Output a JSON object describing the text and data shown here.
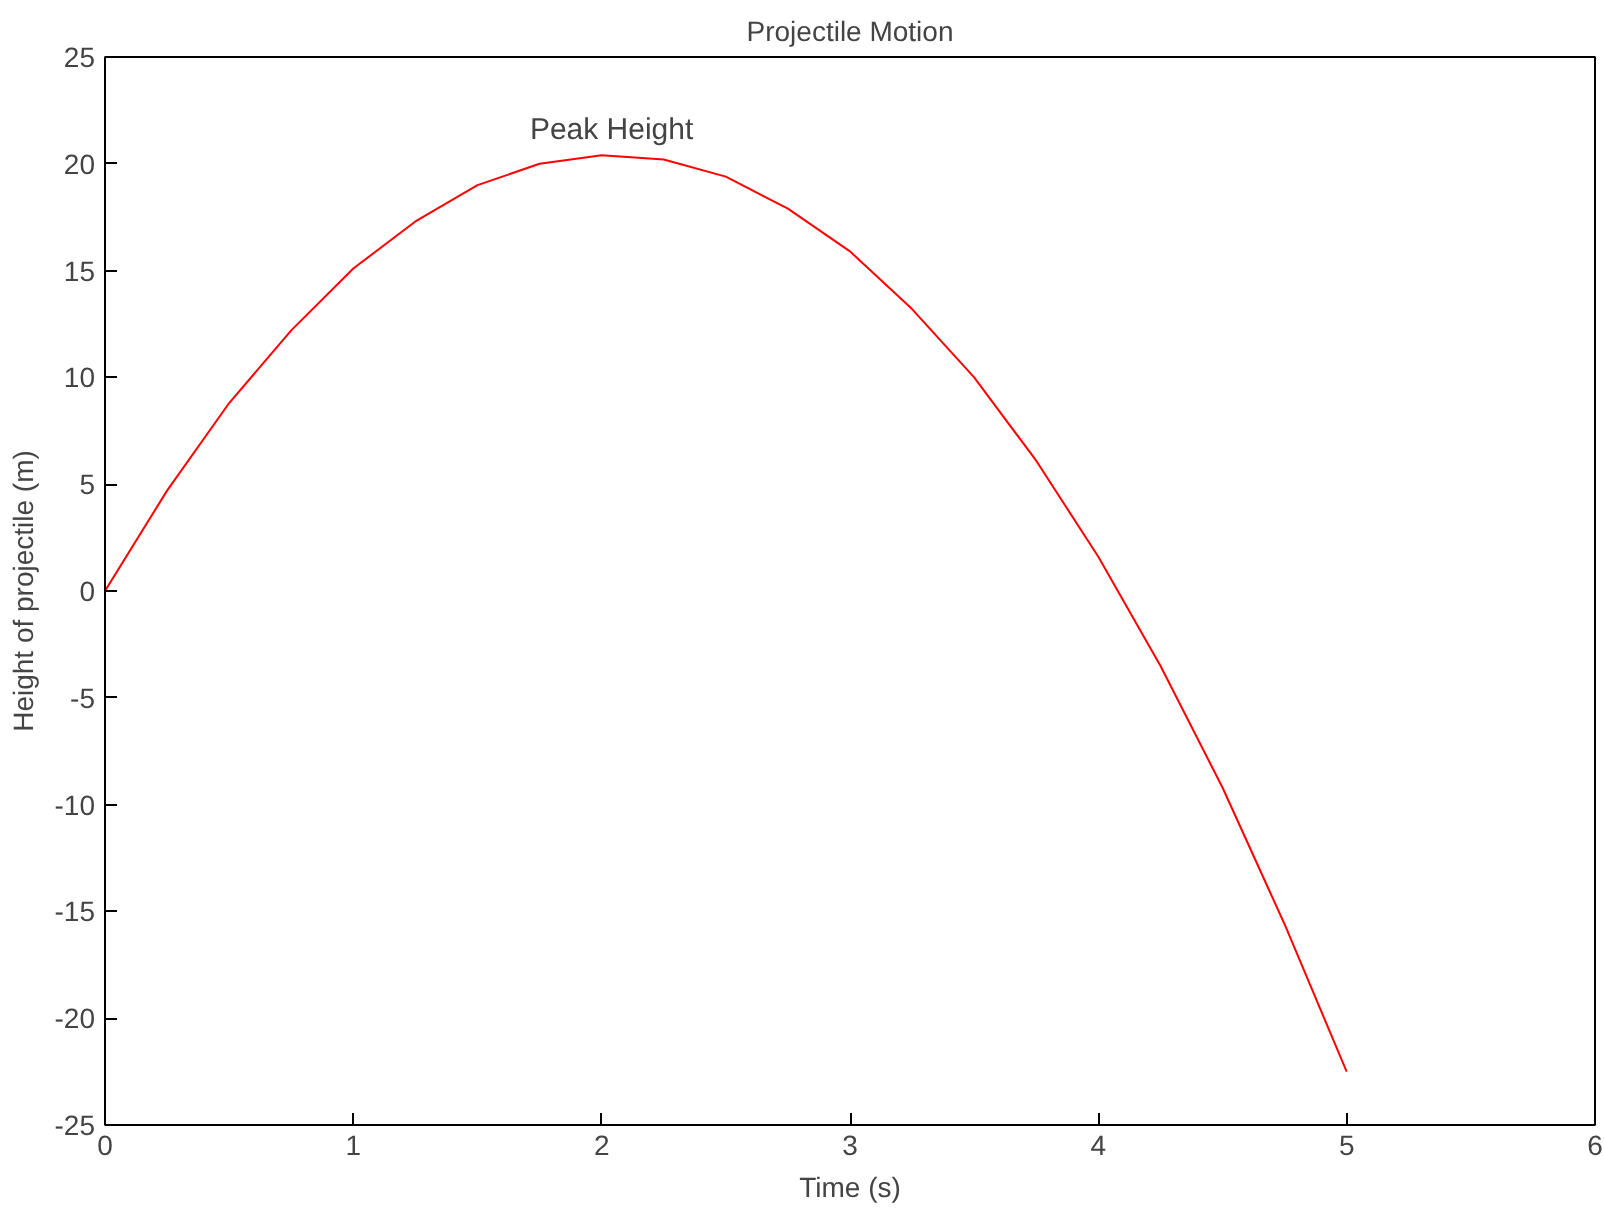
{
  "chart_data": {
    "type": "line",
    "title": "Projectile Motion",
    "xlabel": "Time (s)",
    "ylabel": "Height of projectile (m)",
    "x": [
      0,
      0.25,
      0.5,
      0.75,
      1,
      1.25,
      1.5,
      1.75,
      2,
      2.25,
      2.5,
      2.75,
      3,
      3.25,
      3.5,
      3.75,
      4,
      4.25,
      4.5,
      4.75,
      5
    ],
    "series": [
      {
        "color": "#ff0000",
        "values": [
          0,
          4.7,
          8.8,
          12.2,
          15.1,
          17.3,
          19.0,
          20.0,
          20.4,
          20.2,
          19.4,
          17.9,
          15.9,
          13.2,
          10.0,
          6.1,
          1.6,
          -3.5,
          -9.2,
          -15.6,
          -22.5
        ]
      }
    ],
    "xlim": [
      0,
      6
    ],
    "ylim": [
      -25,
      25
    ],
    "xticks": [
      0,
      1,
      2,
      3,
      4,
      5,
      6
    ],
    "yticks": [
      -25,
      -20,
      -15,
      -10,
      -5,
      0,
      5,
      10,
      15,
      20,
      25
    ],
    "annotations": [
      {
        "text": "Peak Height",
        "x": 2.04,
        "y": 20.4
      }
    ],
    "marker": "none",
    "line_style": "solid"
  }
}
